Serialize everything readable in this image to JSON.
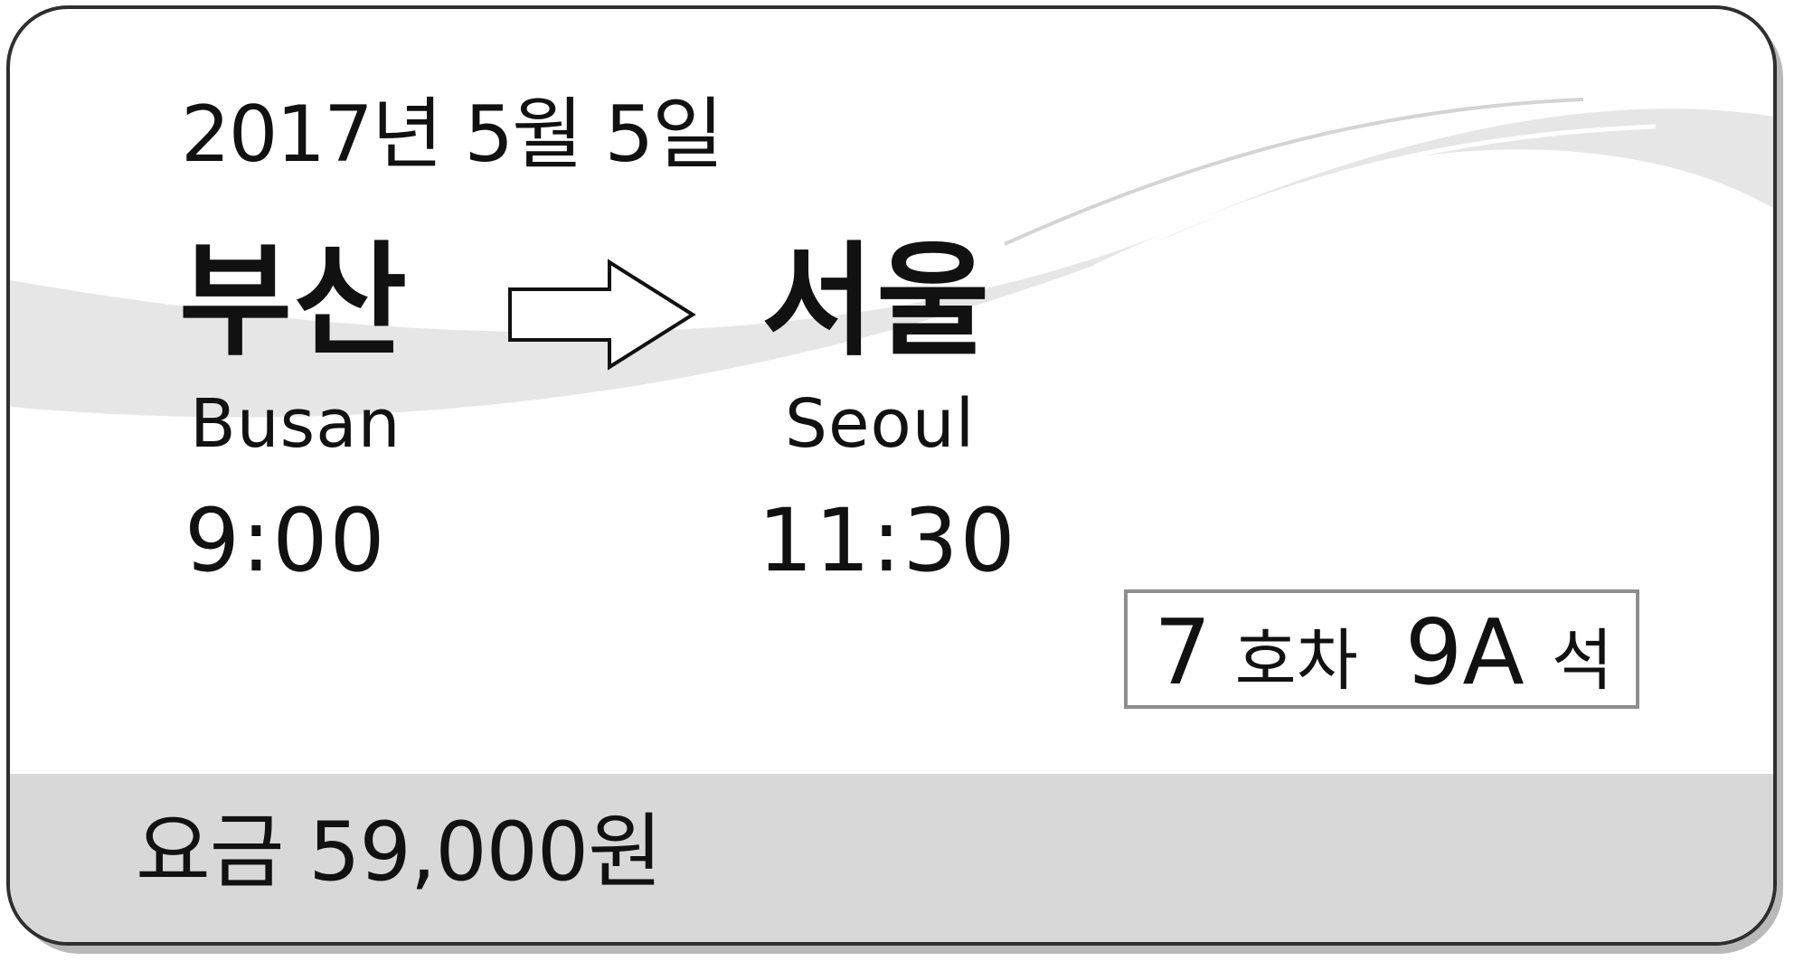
{
  "ticket": {
    "date": "2017년 5월 5일",
    "origin": {
      "name_ko": "부산",
      "name_en": "Busan",
      "time": "9:00"
    },
    "destination": {
      "name_ko": "서울",
      "name_en": "Seoul",
      "time": "11:30"
    },
    "seat": {
      "car_number": "7",
      "car_unit": "호차",
      "seat_number": "9A",
      "seat_unit": "석"
    },
    "fare": "요금 59,000원"
  },
  "icons": {
    "arrow": "right-arrow-icon"
  },
  "colors": {
    "border": "#2f2f2f",
    "fare_band": "#d8d8d8",
    "swoosh": "#e6e6e6",
    "seat_box_border": "#8e8e8e",
    "text": "#111111"
  }
}
